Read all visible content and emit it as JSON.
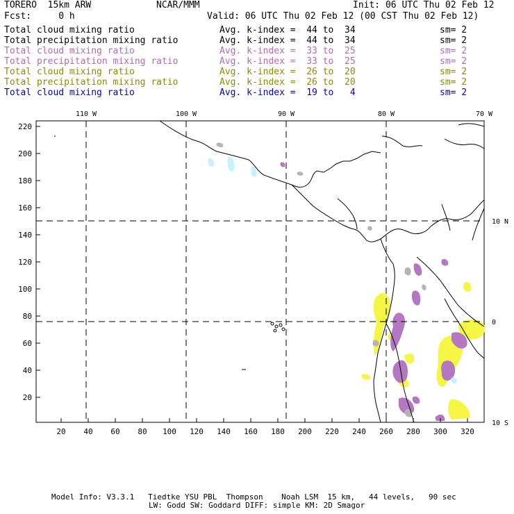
{
  "header": {
    "model": "TORERO  15km ARW",
    "org": "NCAR/MMM",
    "init": "Init: 06 UTC Thu 02 Feb 12",
    "fcst": "Fcst:     0 h",
    "valid": "Valid: 06 UTC Thu 02 Feb 12 (00 CST Thu 02 Feb 12)"
  },
  "legend": [
    {
      "field": "Total cloud mixing ratio",
      "kindex": "Avg. k-index =  44 to  34",
      "sm": "sm= 2",
      "color": "#000000"
    },
    {
      "field": "Total precipitation mixing ratio",
      "kindex": "Avg. k-index =  44 to  34",
      "sm": "sm= 2",
      "color": "#000000"
    },
    {
      "field": "Total cloud mixing ratio",
      "kindex": "Avg. k-index =  33 to  25",
      "sm": "sm= 2",
      "color": "#b469b4"
    },
    {
      "field": "Total precipitation mixing ratio",
      "kindex": "Avg. k-index =  33 to  25",
      "sm": "sm= 2",
      "color": "#b469b4"
    },
    {
      "field": "Total cloud mixing ratio",
      "kindex": "Avg. k-index =  26 to  20",
      "sm": "sm= 2",
      "color": "#8c8c00"
    },
    {
      "field": "Total precipitation mixing ratio",
      "kindex": "Avg. k-index =  26 to  20",
      "sm": "sm= 2",
      "color": "#8c8c00"
    },
    {
      "field": "Total cloud mixing ratio",
      "kindex": "Avg. k-index =  19 to   4",
      "sm": "sm= 2",
      "color": "#0000c8"
    }
  ],
  "map": {
    "lon_labels": [
      "110 W",
      "100 W",
      "90 W",
      "80 W",
      "70 W"
    ],
    "lat_labels": [
      "10 N",
      "0",
      "10 S"
    ],
    "y_ticks": [
      "220",
      "200",
      "180",
      "160",
      "140",
      "120",
      "100",
      "80",
      "60",
      "40",
      "20"
    ],
    "x_ticks": [
      "20",
      "40",
      "60",
      "80",
      "100",
      "120",
      "140",
      "160",
      "180",
      "200",
      "220",
      "240",
      "260",
      "280",
      "300",
      "320"
    ],
    "colors": {
      "yellow": "#f5f546",
      "purple": "#b478c3",
      "gray": "#b4b4b4",
      "cyan": "#c8f0ff",
      "grid": "#000000"
    }
  },
  "footer": {
    "line1": "Model Info: V3.3.1   Tiedtke YSU PBL  Thompson    Noah LSM  15 km,   44 levels,   90 sec",
    "line2": "LW: Godd SW: Goddard DIFF: simple KM: 2D Smagor"
  }
}
